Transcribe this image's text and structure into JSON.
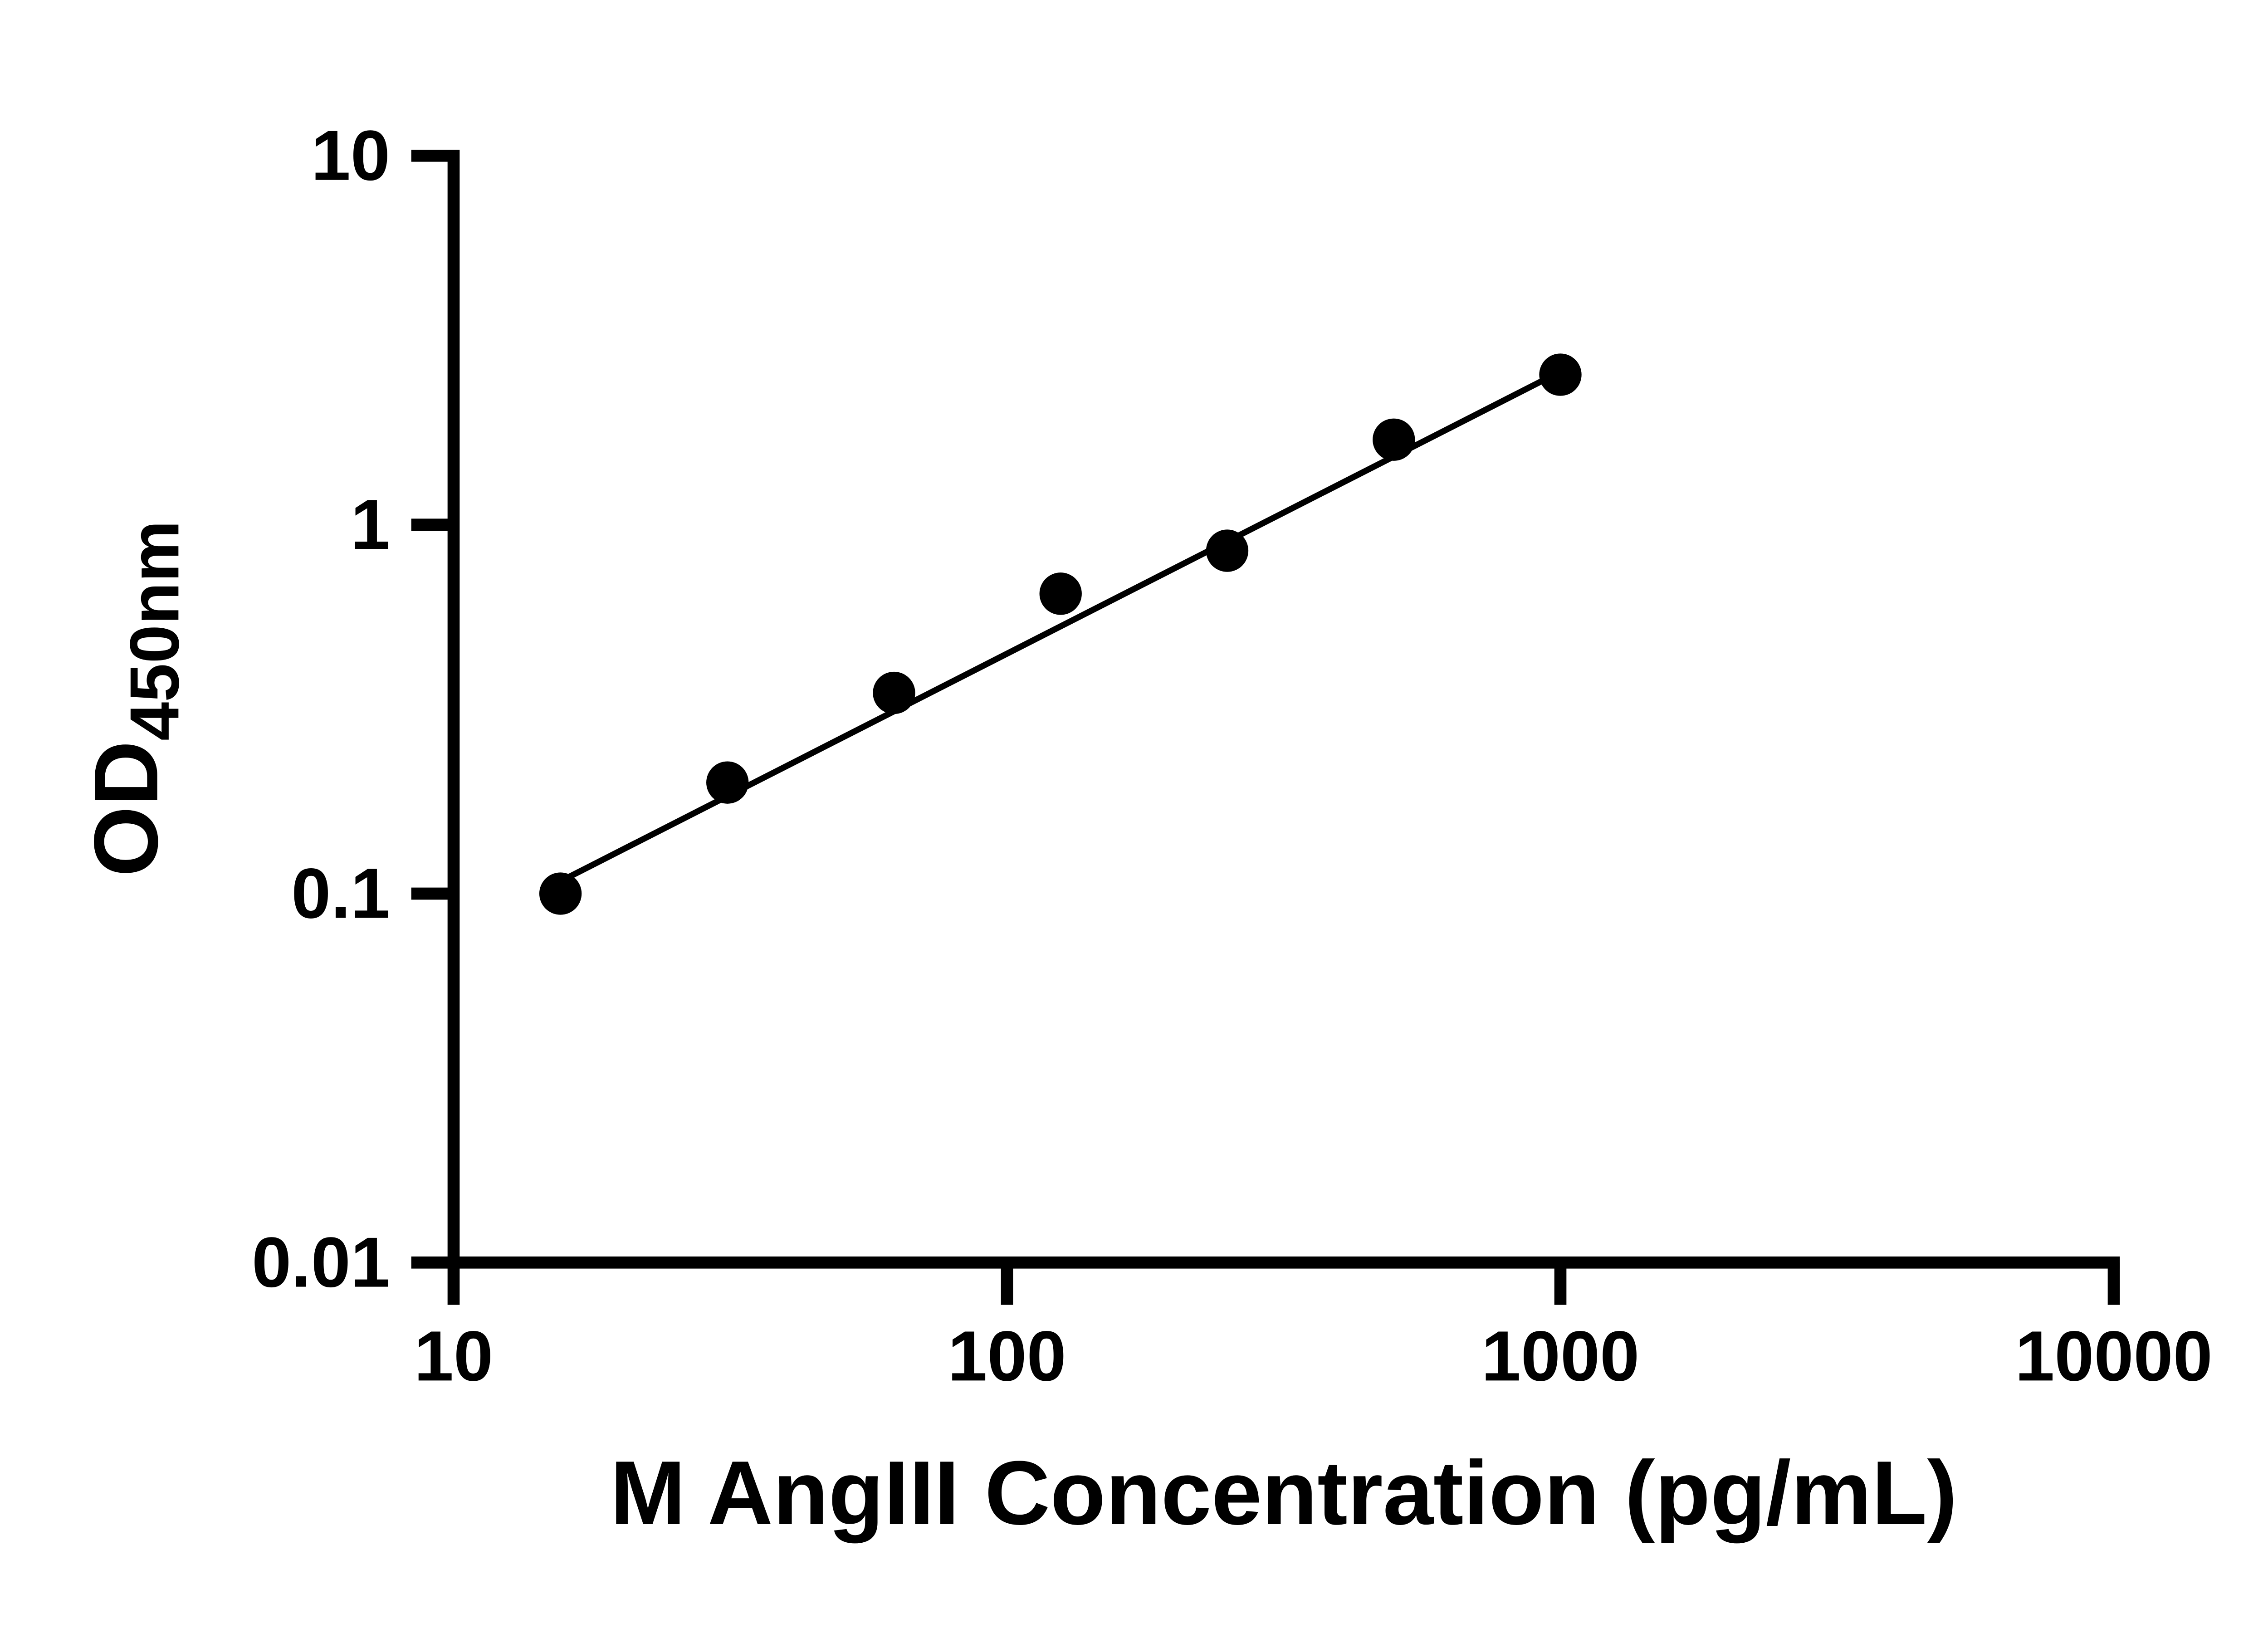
{
  "figure": {
    "background": "#ffffff",
    "axis_color": "#000000"
  },
  "chart_data": {
    "type": "scatter",
    "title": "",
    "xlabel": "M AngIII Concentration (pg/mL)",
    "ylabel_main": "OD",
    "ylabel_sub": "450nm",
    "x_scale": "log",
    "y_scale": "log",
    "xlim": [
      10,
      10000
    ],
    "ylim": [
      0.01,
      10
    ],
    "x_ticks": [
      "10",
      "100",
      "1000",
      "10000"
    ],
    "y_ticks": [
      "0.01",
      "0.1",
      "1",
      "10"
    ],
    "grid": false,
    "legend": false,
    "marker_color": "#000000",
    "line_color": "#000000",
    "points": [
      {
        "x": 15.6,
        "y": 0.1
      },
      {
        "x": 31.25,
        "y": 0.2
      },
      {
        "x": 62.5,
        "y": 0.35
      },
      {
        "x": 125,
        "y": 0.65
      },
      {
        "x": 250,
        "y": 0.85
      },
      {
        "x": 500,
        "y": 1.7
      },
      {
        "x": 1000,
        "y": 2.55
      }
    ],
    "trend_line": {
      "x1": 15.6,
      "y1": 0.108,
      "x2": 1000,
      "y2": 2.6
    }
  }
}
